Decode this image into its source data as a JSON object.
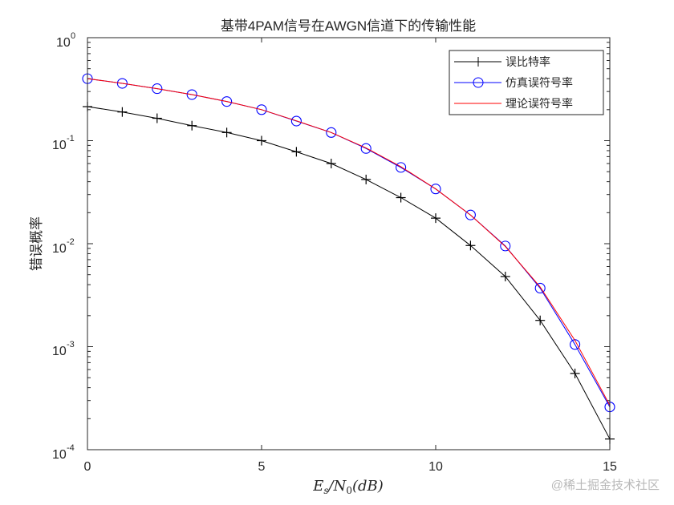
{
  "figure": {
    "title": "基带4PAM信号在AWGN信道下的传输性能",
    "watermark": "@稀土掘金技术社区"
  },
  "axes": {
    "xlabel": "Es/N0(dB)",
    "xlabel_parts": {
      "E": "E",
      "s": "s",
      "slash": "/",
      "N": "N",
      "zero": "0",
      "rest": "(dB)"
    },
    "ylabel": "错误概率",
    "xticks": [
      "0",
      "5",
      "10",
      "15"
    ],
    "yticks": [
      {
        "base": "10",
        "exp": "0"
      },
      {
        "base": "10",
        "exp": "-1"
      },
      {
        "base": "10",
        "exp": "-2"
      },
      {
        "base": "10",
        "exp": "-3"
      },
      {
        "base": "10",
        "exp": "-4"
      }
    ]
  },
  "legend": {
    "items": [
      {
        "label": "误比特率",
        "color": "#000000",
        "marker": "plus"
      },
      {
        "label": "仿真误符号率",
        "color": "#0000ff",
        "marker": "circle"
      },
      {
        "label": "理论误符号率",
        "color": "#ff0000",
        "marker": "none"
      }
    ]
  },
  "chart_data": {
    "type": "line",
    "title": "基带4PAM信号在AWGN信道下的传输性能",
    "xlabel": "E_s/N_0(dB)",
    "ylabel": "错误概率",
    "xlim": [
      0,
      15
    ],
    "ylim": [
      0.0001,
      1
    ],
    "yscale": "log",
    "grid": false,
    "legend_position": "northeast",
    "x": [
      0,
      1,
      2,
      3,
      4,
      5,
      6,
      7,
      8,
      9,
      10,
      11,
      12,
      13,
      14,
      15
    ],
    "series": [
      {
        "name": "误比特率",
        "color": "#000000",
        "marker": "+",
        "values": [
          0.214,
          0.19,
          0.165,
          0.14,
          0.12,
          0.1,
          0.078,
          0.06,
          0.042,
          0.028,
          0.0177,
          0.0096,
          0.0048,
          0.0018,
          0.00055,
          0.000127
        ]
      },
      {
        "name": "仿真误符号率",
        "color": "#0000ff",
        "marker": "o",
        "values": [
          0.4,
          0.36,
          0.32,
          0.28,
          0.24,
          0.2,
          0.155,
          0.12,
          0.084,
          0.055,
          0.034,
          0.019,
          0.0095,
          0.0037,
          0.00105,
          0.00026
        ]
      },
      {
        "name": "理论误符号率",
        "color": "#ff0000",
        "marker": "none",
        "values": [
          0.4,
          0.36,
          0.32,
          0.28,
          0.24,
          0.2,
          0.156,
          0.12,
          0.085,
          0.056,
          0.034,
          0.019,
          0.0094,
          0.0038,
          0.00115,
          0.00027
        ]
      }
    ]
  }
}
